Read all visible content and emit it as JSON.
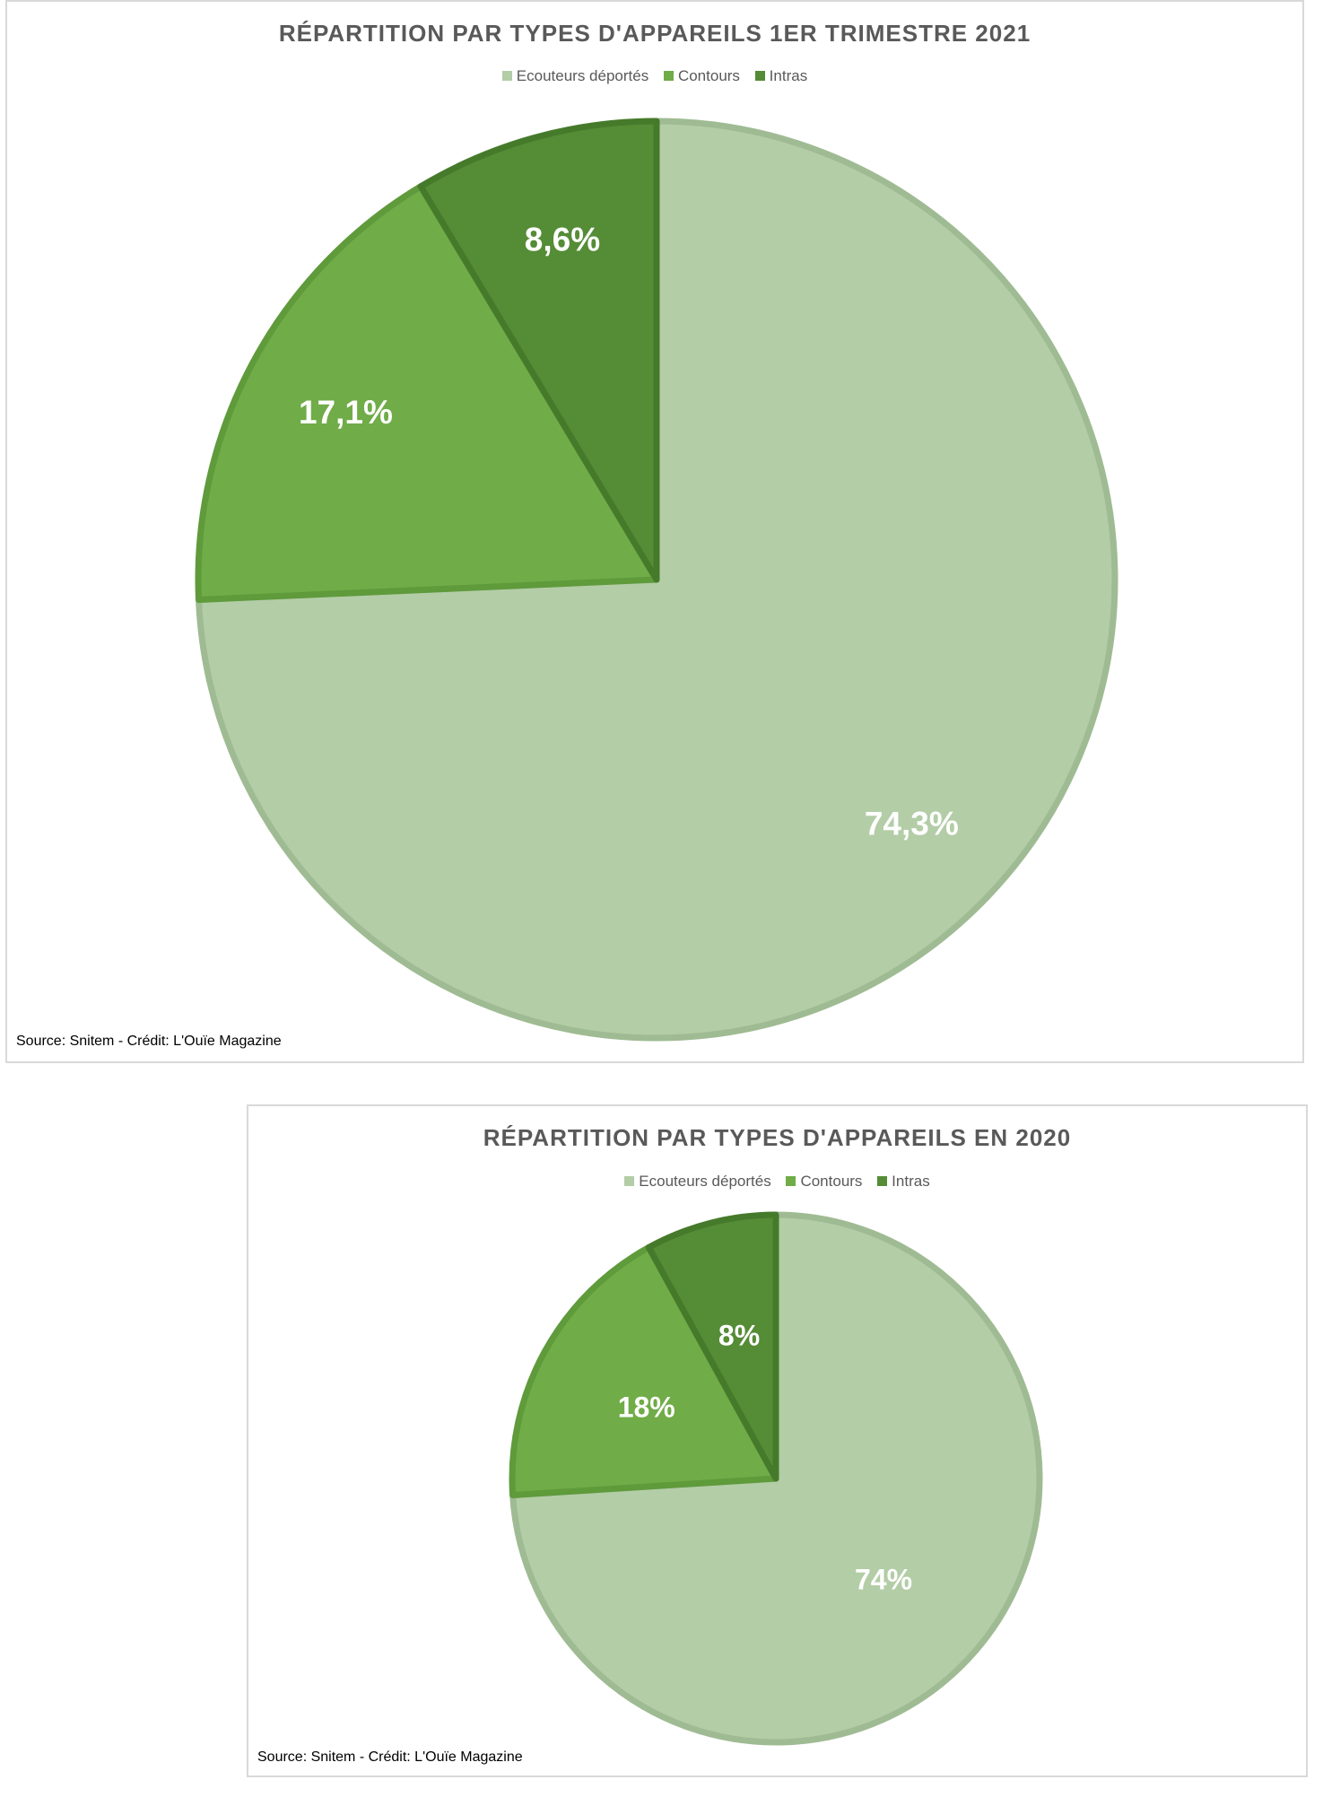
{
  "chart_data": [
    {
      "type": "pie",
      "title": "RÉPARTITION PAR TYPES D'APPAREILS 1ER TRIMESTRE 2021",
      "legend_placement": "top",
      "slices": [
        {
          "name": "Ecouteurs déportés",
          "value": 74.3,
          "label": "74,3%",
          "color": "#b3cda7"
        },
        {
          "name": "Contours",
          "value": 17.1,
          "label": "17,1%",
          "color": "#70ac47"
        },
        {
          "name": "Intras",
          "value": 8.6,
          "label": "8,6%",
          "color": "#558c36"
        }
      ],
      "source": "Source: Snitem - Crédit: L'Ouïe Magazine"
    },
    {
      "type": "pie",
      "title": "RÉPARTITION PAR TYPES D'APPAREILS EN 2020",
      "legend_placement": "top",
      "slices": [
        {
          "name": "Ecouteurs déportés",
          "value": 74,
          "label": "74%",
          "color": "#b3cda7"
        },
        {
          "name": "Contours",
          "value": 18,
          "label": "18%",
          "color": "#70ac47"
        },
        {
          "name": "Intras",
          "value": 8,
          "label": "8%",
          "color": "#558c36"
        }
      ],
      "source": "Source: Snitem - Crédit: L'Ouïe Magazine"
    }
  ],
  "colors": {
    "Ecouteurs déportés": {
      "fill": "#b3cda7",
      "stroke": "#9fbb93"
    },
    "Contours": {
      "fill": "#70ac47",
      "stroke": "#5f9a3b"
    },
    "Intras": {
      "fill": "#558c36",
      "stroke": "#467a2b"
    }
  }
}
